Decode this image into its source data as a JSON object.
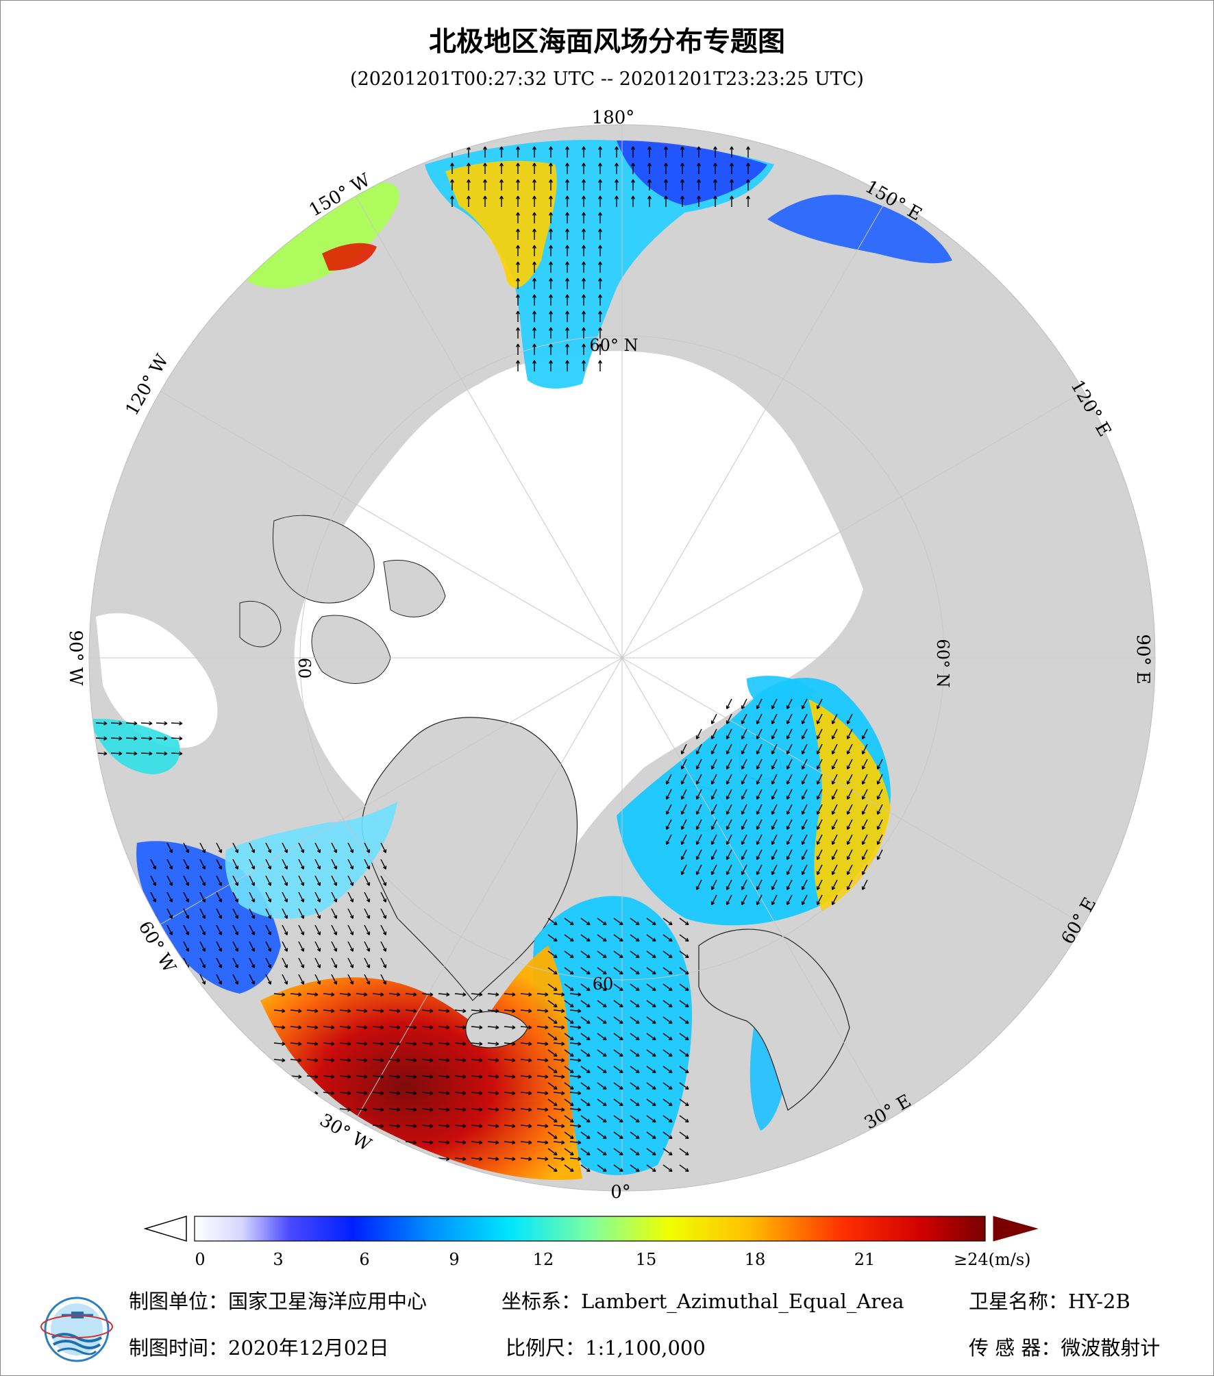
{
  "header": {
    "title": "北极地区海面风场分布专题图",
    "time_range": "(20201201T00:27:32 UTC -- 20201201T23:23:25 UTC)"
  },
  "map": {
    "projection": "Lambert_Azimuthal_Equal_Area",
    "longitude_labels": {
      "lon_180": "180°",
      "lon_150W": "150° W",
      "lon_120W": "120° W",
      "lon_90W": "90° W",
      "lon_60W": "60° W",
      "lon_30W": "30° W",
      "lon_0": "0°",
      "lon_30E": "30° E",
      "lon_60E": "60° E",
      "lon_90E": "90° E",
      "lon_120E": "120° E",
      "lon_150E": "150° E"
    },
    "latitude_labels": {
      "lat_60N_top": "60° N",
      "lat_60N_right": "60° N",
      "lat_60_left": "60",
      "lat_60_bottom": "60"
    },
    "colors": {
      "land": "#d3d3d3",
      "sea_ice": "#ffffff",
      "background_ocean": "#d3d3d3"
    }
  },
  "colorbar": {
    "ticks": [
      "0",
      "3",
      "6",
      "9",
      "12",
      "15",
      "18",
      "21"
    ],
    "max_label": "≥24",
    "unit": "(m/s)",
    "range": [
      0,
      24
    ]
  },
  "footer": {
    "producer_label": "制图单位：国家卫星海洋应用中心",
    "production_time_label": "制图时间：2020年12月02日",
    "coordinate_label": "坐标系：Lambert_Azimuthal_Equal_Area",
    "scale_label": "比例尺：1:1,100,000",
    "satellite_label": "卫星名称：HY-2B",
    "sensor_label": "传 感 器：微波散射计"
  }
}
